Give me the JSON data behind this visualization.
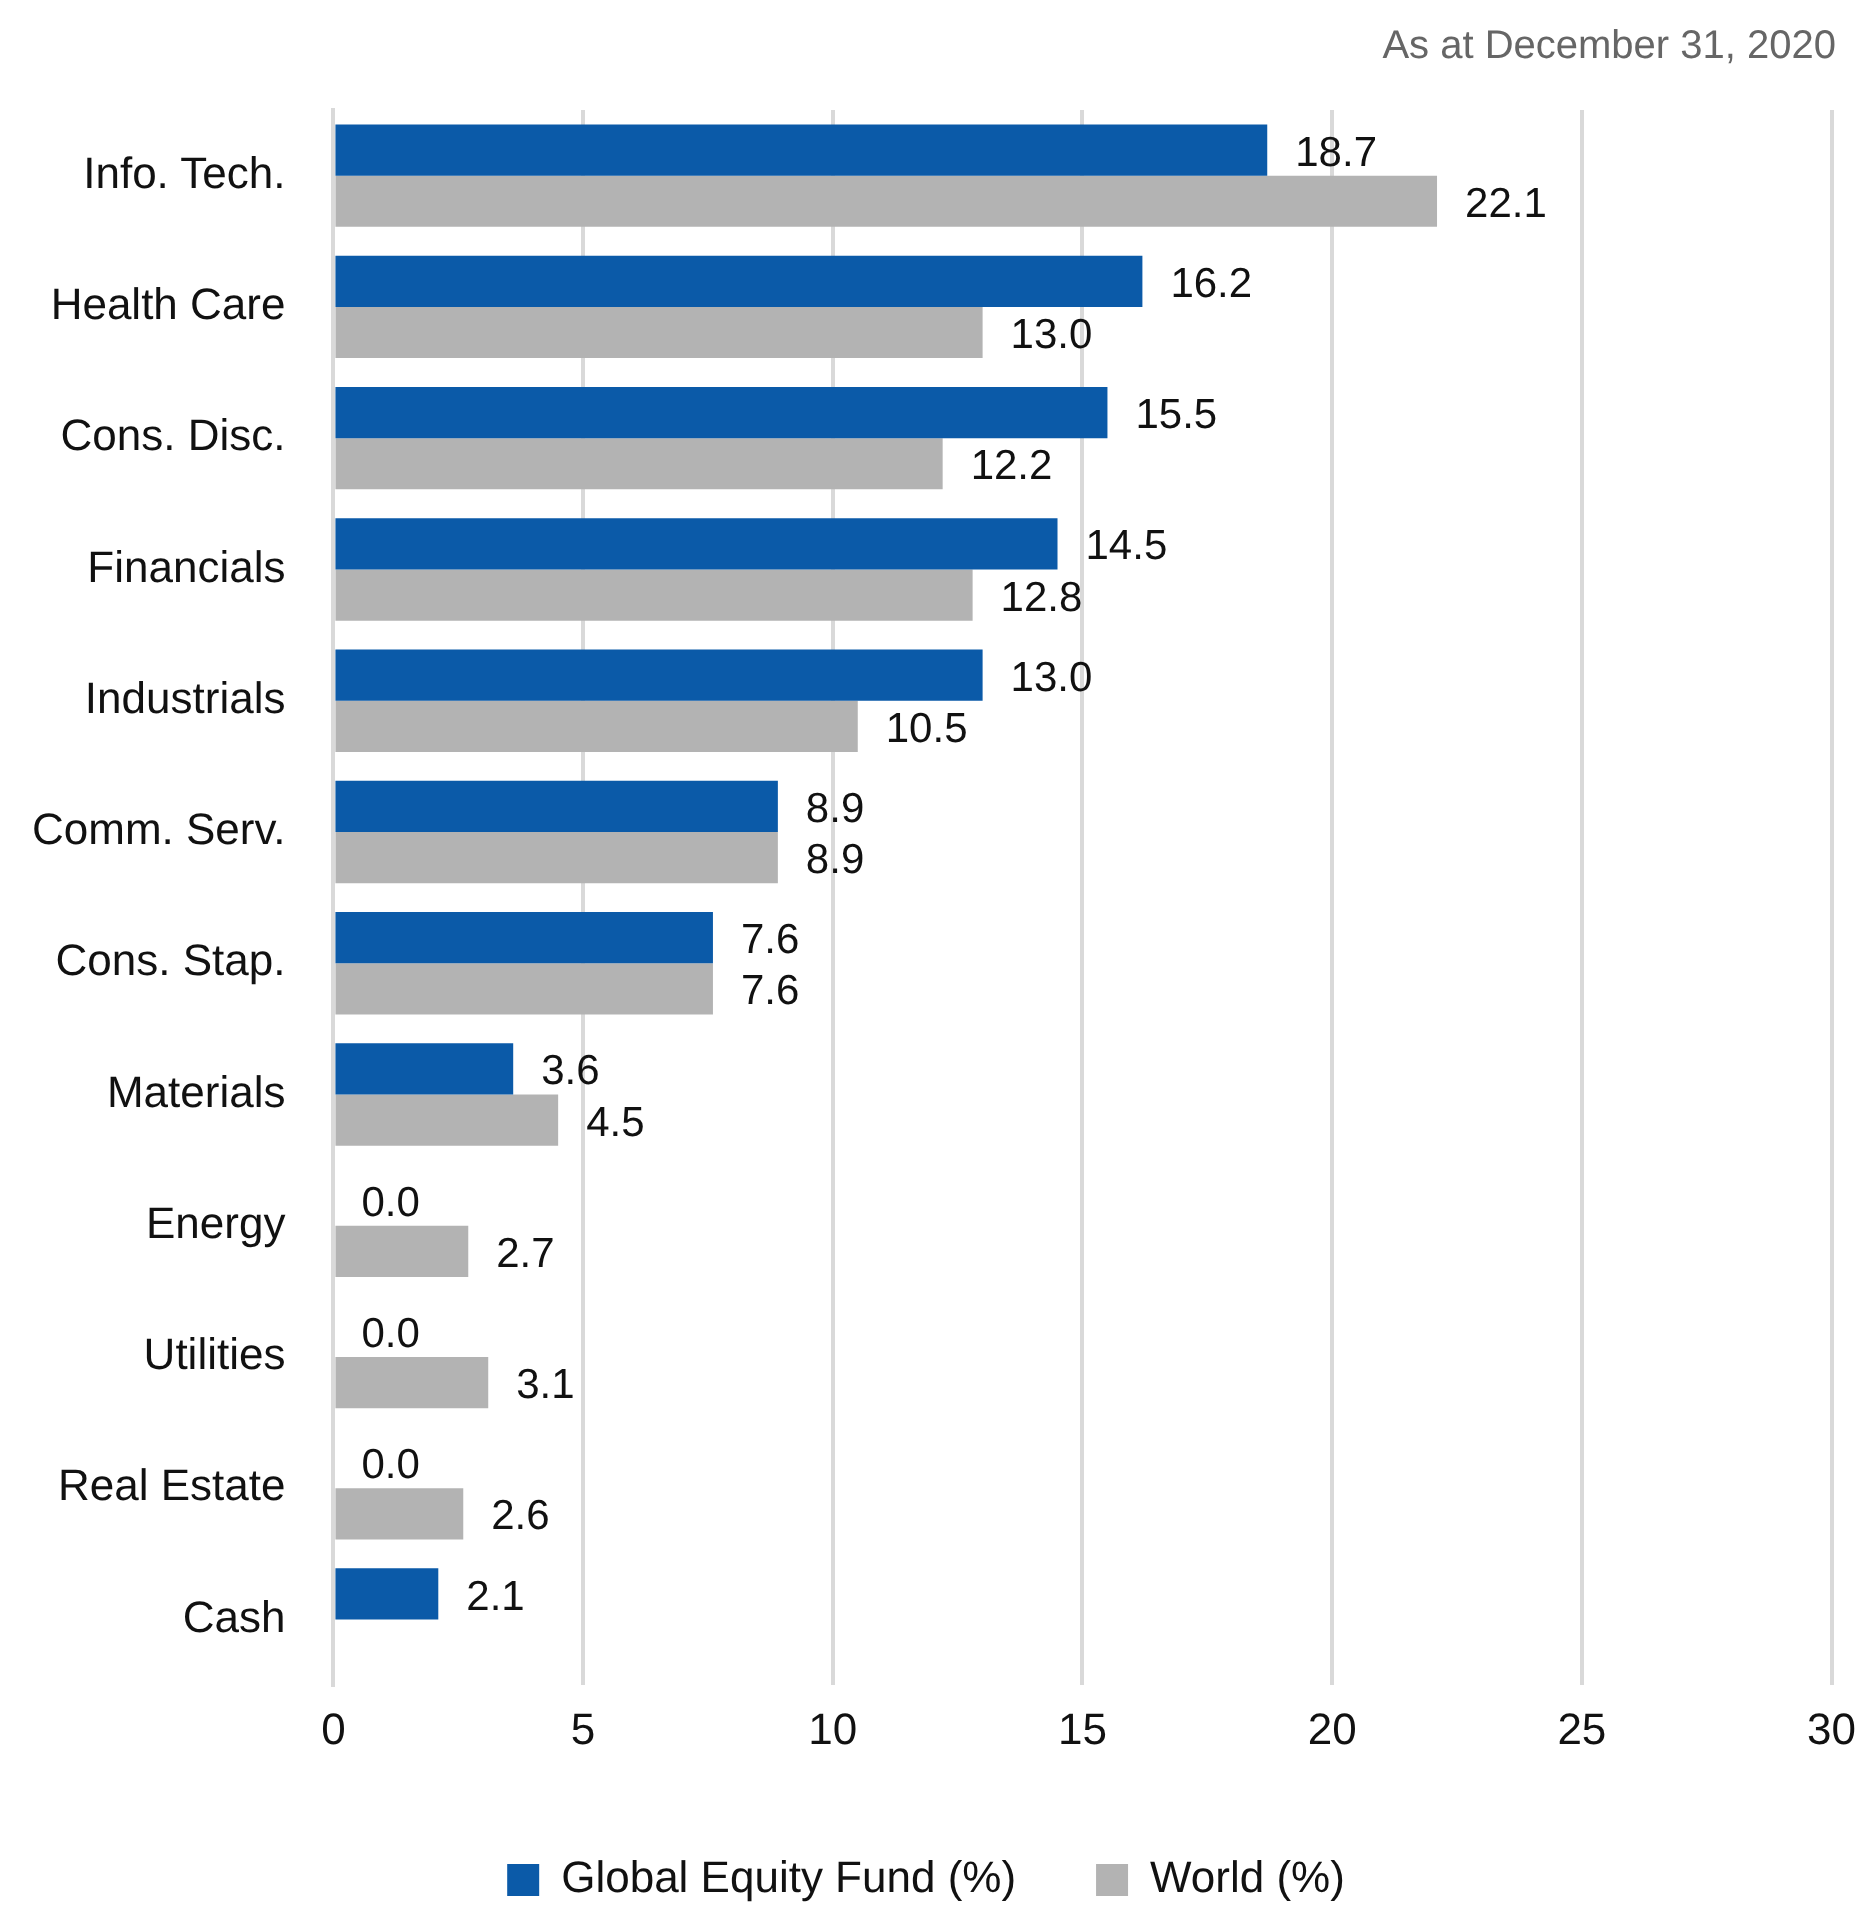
{
  "chart_data": {
    "type": "bar",
    "orientation": "horizontal",
    "annotations": [
      "As at December 31, 2020"
    ],
    "categories": [
      "Info. Tech.",
      "Health Care",
      "Cons. Disc.",
      "Financials",
      "Industrials",
      "Comm. Serv.",
      "Cons. Stap.",
      "Materials",
      "Energy",
      "Utilities",
      "Real Estate",
      "Cash"
    ],
    "series": [
      {
        "name": "Global Equity Fund (%)",
        "color": "#0b5aa8",
        "values": [
          18.7,
          16.2,
          15.5,
          14.5,
          13.0,
          8.9,
          7.6,
          3.6,
          0.0,
          0.0,
          0.0,
          2.1
        ],
        "value_labels": [
          "18.7",
          "16.2",
          "15.5",
          "14.5",
          "13.0",
          "8.9",
          "7.6",
          "3.6",
          "0.0",
          "0.0",
          "0.0",
          "2.1"
        ]
      },
      {
        "name": "World (%)",
        "color": "#b3b3b3",
        "values": [
          22.1,
          13.0,
          12.2,
          12.8,
          10.5,
          8.9,
          7.6,
          4.5,
          2.7,
          3.1,
          2.6,
          null
        ],
        "value_labels": [
          "22.1",
          "13.0",
          "12.2",
          "12.8",
          "10.5",
          "8.9",
          "7.6",
          "4.5",
          "2.7",
          "3.1",
          "2.6",
          null
        ]
      }
    ],
    "xlim": [
      0,
      30
    ],
    "xticks": [
      0,
      5,
      10,
      15,
      20,
      25,
      30
    ],
    "grid": "x",
    "legend": "bottom"
  }
}
